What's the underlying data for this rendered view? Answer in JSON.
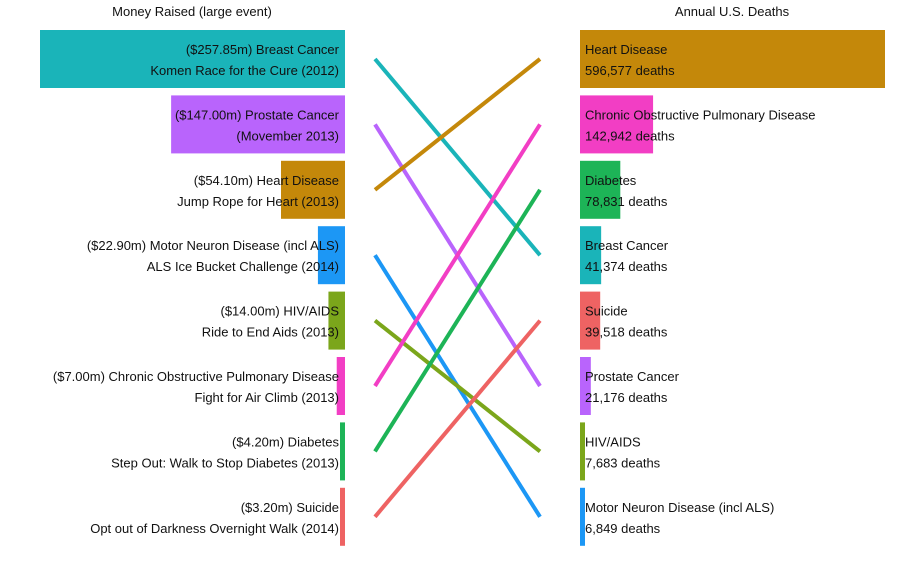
{
  "chart_data": {
    "type": "bar",
    "left_title": "Money Raised (large event)",
    "right_title": "Annual U.S. Deaths",
    "left_bars": [
      {
        "cause": "Breast Cancer",
        "amount_label": "($257.85m) Breast Cancer",
        "event": "Komen Race for the Cure (2012)",
        "value": 257.85,
        "color": "#1AB4B9"
      },
      {
        "cause": "Prostate Cancer",
        "amount_label": "($147.00m) Prostate Cancer",
        "event": "(Movember 2013)",
        "value": 147.0,
        "color": "#B964FC"
      },
      {
        "cause": "Heart Disease",
        "amount_label": "($54.10m) Heart Disease",
        "event": "Jump Rope for Heart (2013)",
        "value": 54.1,
        "color": "#C4880A"
      },
      {
        "cause": "Motor Neuron Disease (incl ALS)",
        "amount_label": "($22.90m) Motor Neuron Disease (incl ALS)",
        "event": "ALS Ice Bucket Challenge (2014)",
        "value": 22.9,
        "color": "#1C97F5"
      },
      {
        "cause": "HIV/AIDS",
        "amount_label": "($14.00m) HIV/AIDS",
        "event": "Ride to End Aids (2013)",
        "value": 14.0,
        "color": "#7BA61B"
      },
      {
        "cause": "Chronic Obstructive Pulmonary Disease",
        "amount_label": "($7.00m) Chronic Obstructive Pulmonary Disease",
        "event": "Fight for Air Climb (2013)",
        "value": 7.0,
        "color": "#F23EC4"
      },
      {
        "cause": "Diabetes",
        "amount_label": "($4.20m) Diabetes",
        "event": "Step Out: Walk to Stop Diabetes (2013)",
        "value": 4.2,
        "color": "#1DB457"
      },
      {
        "cause": "Suicide",
        "amount_label": "($3.20m) Suicide",
        "event": "Opt out of Darkness Overnight Walk (2014)",
        "value": 3.2,
        "color": "#EE6363"
      }
    ],
    "right_bars": [
      {
        "cause": "Heart Disease",
        "deaths_label": "596,577 deaths",
        "value": 596577,
        "color": "#C4880A"
      },
      {
        "cause": "Chronic Obstructive Pulmonary Disease",
        "deaths_label": "142,942 deaths",
        "value": 142942,
        "color": "#F23EC4"
      },
      {
        "cause": "Diabetes",
        "deaths_label": "78,831 deaths",
        "value": 78831,
        "color": "#1DB457"
      },
      {
        "cause": "Breast Cancer",
        "deaths_label": "41,374 deaths",
        "value": 41374,
        "color": "#1AB4B9"
      },
      {
        "cause": "Suicide",
        "deaths_label": "39,518 deaths",
        "value": 39518,
        "color": "#EE6363"
      },
      {
        "cause": "Prostate Cancer",
        "deaths_label": "21,176 deaths",
        "value": 21176,
        "color": "#B964FC"
      },
      {
        "cause": "HIV/AIDS",
        "deaths_label": "7,683 deaths",
        "value": 7683,
        "color": "#7BA61B"
      },
      {
        "cause": "Motor Neuron Disease (incl ALS)",
        "deaths_label": "6,849 deaths",
        "value": 6849,
        "color": "#1C97F5"
      }
    ]
  }
}
